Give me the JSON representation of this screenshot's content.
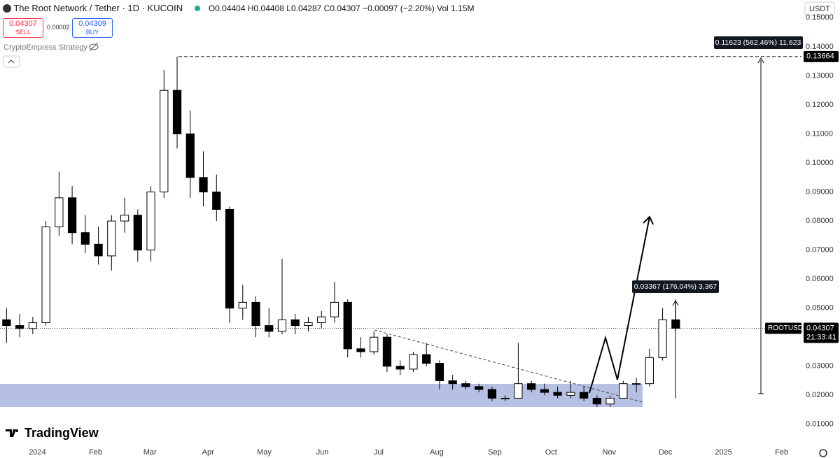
{
  "header": {
    "symbol": "The Root Network / Tether · 1D · KUCOIN",
    "open": "O0.04404",
    "high": "H0.04408",
    "low": "L0.04287",
    "close": "C0.04307",
    "change": "−0.00097 (−2.20%)",
    "volume": "Vol 1.15M"
  },
  "trade": {
    "sell_price": "0.04307",
    "sell": "SELL",
    "spread": "0.00002",
    "buy_price": "0.04309",
    "buy": "BUY"
  },
  "indicator": "CryptoEmpress Strategy",
  "currency": "USDT",
  "logo": "TradingView",
  "chart_data": {
    "type": "candlestick",
    "symbol": "ROOTUSDT",
    "countdown": "21:33:41",
    "last_price": 0.04307,
    "peak_level": 0.13664,
    "measurements": [
      "0.11623 (562.46%) 11,623",
      "0.03367 (176.04%) 3,367"
    ],
    "up_color": "#ffffff",
    "down_color": "#000000",
    "wick_color": "#000000",
    "grid": false,
    "x": [
      3.5,
      10.5,
      17.5,
      24.5,
      31.5,
      38.5,
      45.5,
      52.5,
      59.5,
      66.5,
      73.5,
      80.5,
      87.5,
      94.5,
      101.5,
      108.5,
      115.5,
      122.5,
      129.5,
      136.5,
      143.5,
      150.5,
      157.5,
      164.5,
      171.5,
      178.5,
      185.5,
      192.5,
      199.5,
      206.5,
      213.5,
      220.5,
      227.5,
      234.5,
      241.5,
      248.5,
      255.5,
      262.5,
      269.5,
      276.5,
      283.5,
      290.5,
      297.5,
      304.5,
      311.5,
      318.5,
      325.5,
      332.5,
      339.5,
      346.5,
      353.5,
      360.5
    ],
    "open": [
      0.046,
      0.044,
      0.043,
      0.045,
      0.078,
      0.088,
      0.076,
      0.072,
      0.068,
      0.08,
      0.082,
      0.07,
      0.09,
      0.125,
      0.11,
      0.095,
      0.09,
      0.084,
      0.05,
      0.052,
      0.044,
      0.042,
      0.046,
      0.044,
      0.045,
      0.047,
      0.052,
      0.036,
      0.035,
      0.04,
      0.03,
      0.029,
      0.034,
      0.031,
      0.025,
      0.024,
      0.023,
      0.022,
      0.019,
      0.019,
      0.024,
      0.022,
      0.021,
      0.02,
      0.021,
      0.019,
      0.017,
      0.019,
      0.024,
      0.024,
      0.033,
      0.046
    ],
    "high": [
      0.05,
      0.048,
      0.047,
      0.08,
      0.097,
      0.092,
      0.082,
      0.078,
      0.082,
      0.088,
      0.084,
      0.092,
      0.132,
      0.1366,
      0.118,
      0.104,
      0.096,
      0.085,
      0.058,
      0.054,
      0.05,
      0.067,
      0.048,
      0.047,
      0.049,
      0.059,
      0.053,
      0.04,
      0.042,
      0.041,
      0.032,
      0.035,
      0.038,
      0.032,
      0.027,
      0.025,
      0.024,
      0.023,
      0.02,
      0.038,
      0.025,
      0.024,
      0.023,
      0.025,
      0.023,
      0.02,
      0.02,
      0.025,
      0.026,
      0.036,
      0.05,
      0.053
    ],
    "low": [
      0.038,
      0.04,
      0.041,
      0.044,
      0.075,
      0.072,
      0.069,
      0.065,
      0.063,
      0.076,
      0.066,
      0.066,
      0.088,
      0.105,
      0.088,
      0.085,
      0.08,
      0.045,
      0.046,
      0.04,
      0.04,
      0.041,
      0.041,
      0.042,
      0.043,
      0.045,
      0.033,
      0.033,
      0.034,
      0.028,
      0.027,
      0.028,
      0.03,
      0.022,
      0.022,
      0.022,
      0.021,
      0.018,
      0.018,
      0.019,
      0.021,
      0.02,
      0.019,
      0.019,
      0.018,
      0.016,
      0.016,
      0.019,
      0.021,
      0.023,
      0.032,
      0.042
    ],
    "close": [
      0.044,
      0.043,
      0.045,
      0.078,
      0.088,
      0.076,
      0.072,
      0.068,
      0.08,
      0.082,
      0.07,
      0.09,
      0.125,
      0.11,
      0.095,
      0.09,
      0.084,
      0.05,
      0.052,
      0.044,
      0.042,
      0.046,
      0.044,
      0.045,
      0.047,
      0.052,
      0.036,
      0.035,
      0.04,
      0.03,
      0.029,
      0.034,
      0.031,
      0.025,
      0.024,
      0.023,
      0.022,
      0.019,
      0.019,
      0.024,
      0.022,
      0.021,
      0.02,
      0.021,
      0.019,
      0.017,
      0.019,
      0.024,
      0.024,
      0.033,
      0.046,
      0.04307
    ],
    "xlim": [
      0,
      427.6
    ],
    "ylim": [
      0.0037,
      0.1561
    ],
    "xticks": [
      {
        "value": 20,
        "label": "2024"
      },
      {
        "value": 51,
        "label": "Feb"
      },
      {
        "value": 80,
        "label": "Mar"
      },
      {
        "value": 111,
        "label": "Apr"
      },
      {
        "value": 141,
        "label": "May"
      },
      {
        "value": 172,
        "label": "Jun"
      },
      {
        "value": 202,
        "label": "Jul"
      },
      {
        "value": 233,
        "label": "Aug"
      },
      {
        "value": 264,
        "label": "Sep"
      },
      {
        "value": 294,
        "label": "Oct"
      },
      {
        "value": 325,
        "label": "Nov"
      },
      {
        "value": 355,
        "label": "Dec"
      },
      {
        "value": 386,
        "label": "2025"
      },
      {
        "value": 417,
        "label": "Feb"
      }
    ],
    "yticks": [
      {
        "value": 0.01,
        "label": "0.01000"
      },
      {
        "value": 0.02,
        "label": "0.02000"
      },
      {
        "value": 0.03,
        "label": "0.03000"
      },
      {
        "value": 0.04,
        "label": "0.04000"
      },
      {
        "value": 0.05,
        "label": "0.05000"
      },
      {
        "value": 0.06,
        "label": "0.06000"
      },
      {
        "value": 0.07,
        "label": "0.07000"
      },
      {
        "value": 0.08,
        "label": "0.08000"
      },
      {
        "value": 0.09,
        "label": "0.09000"
      },
      {
        "value": 0.1,
        "label": "0.10000"
      },
      {
        "value": 0.11,
        "label": "0.11000"
      },
      {
        "value": 0.12,
        "label": "0.12000"
      },
      {
        "value": 0.13,
        "label": "0.13000"
      },
      {
        "value": 0.14,
        "label": "0.14000"
      },
      {
        "value": 0.15,
        "label": "0.15000"
      }
    ]
  }
}
